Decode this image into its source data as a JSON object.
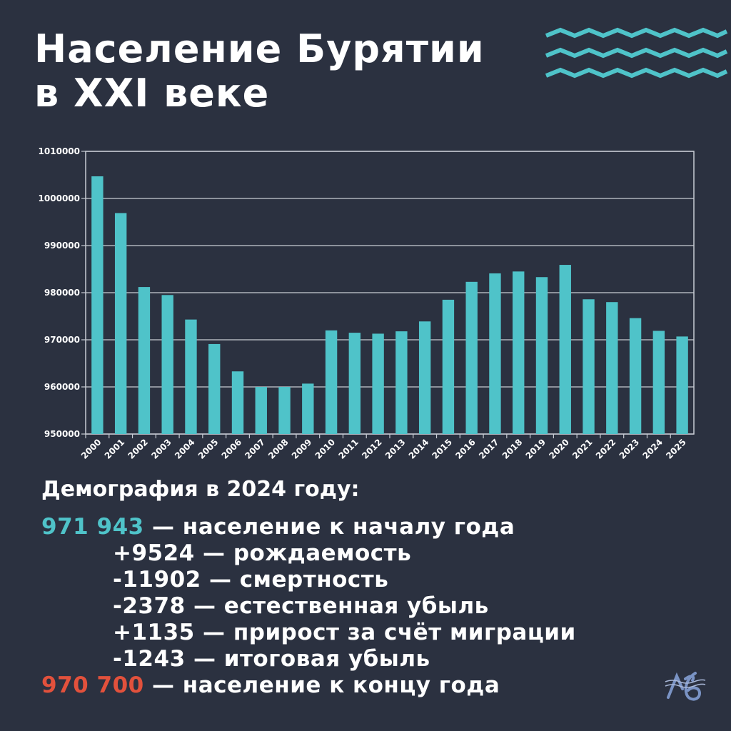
{
  "title": {
    "line1": "Население Бурятии",
    "line2": "в XXI веке"
  },
  "colors": {
    "background": "#2b3140",
    "bar": "#4fc3c9",
    "accent_teal": "#4fc3c9",
    "accent_red": "#e2513c",
    "grid": "#c8ccd4"
  },
  "chart_data": {
    "type": "bar",
    "categories": [
      "2000",
      "2001",
      "2002",
      "2003",
      "2004",
      "2005",
      "2006",
      "2007",
      "2008",
      "2009",
      "2010",
      "2011",
      "2012",
      "2013",
      "2014",
      "2015",
      "2016",
      "2017",
      "2018",
      "2019",
      "2020",
      "2021",
      "2022",
      "2023",
      "2024",
      "2025"
    ],
    "values": [
      1004700,
      996900,
      981200,
      979500,
      974300,
      969100,
      963300,
      960000,
      960000,
      960700,
      972000,
      971500,
      971300,
      971800,
      973900,
      978500,
      982300,
      984100,
      984500,
      983300,
      985900,
      978600,
      978000,
      974600,
      971900,
      970700
    ],
    "yticks": [
      "950000",
      "960000",
      "970000",
      "980000",
      "990000",
      "1000000",
      "1010000"
    ],
    "ylim": [
      950000,
      1010000
    ],
    "grid": true,
    "xlabel": "",
    "ylabel": ""
  },
  "demography": {
    "heading": "Демография в 2024 году:",
    "start_value": "971 943",
    "start_text": " — население к началу года",
    "items": [
      "+9524 — рождаемость",
      "-11902 — смертность",
      "-2378 — естественная убыль",
      "+1135 — прирост за счёт миграции",
      "-1243 — итоговая убыль"
    ],
    "end_value": "970 700",
    "end_text": " — население к концу года"
  },
  "icons": {
    "decoration": "wave-lines-icon",
    "logo": "brand-logo-icon"
  }
}
